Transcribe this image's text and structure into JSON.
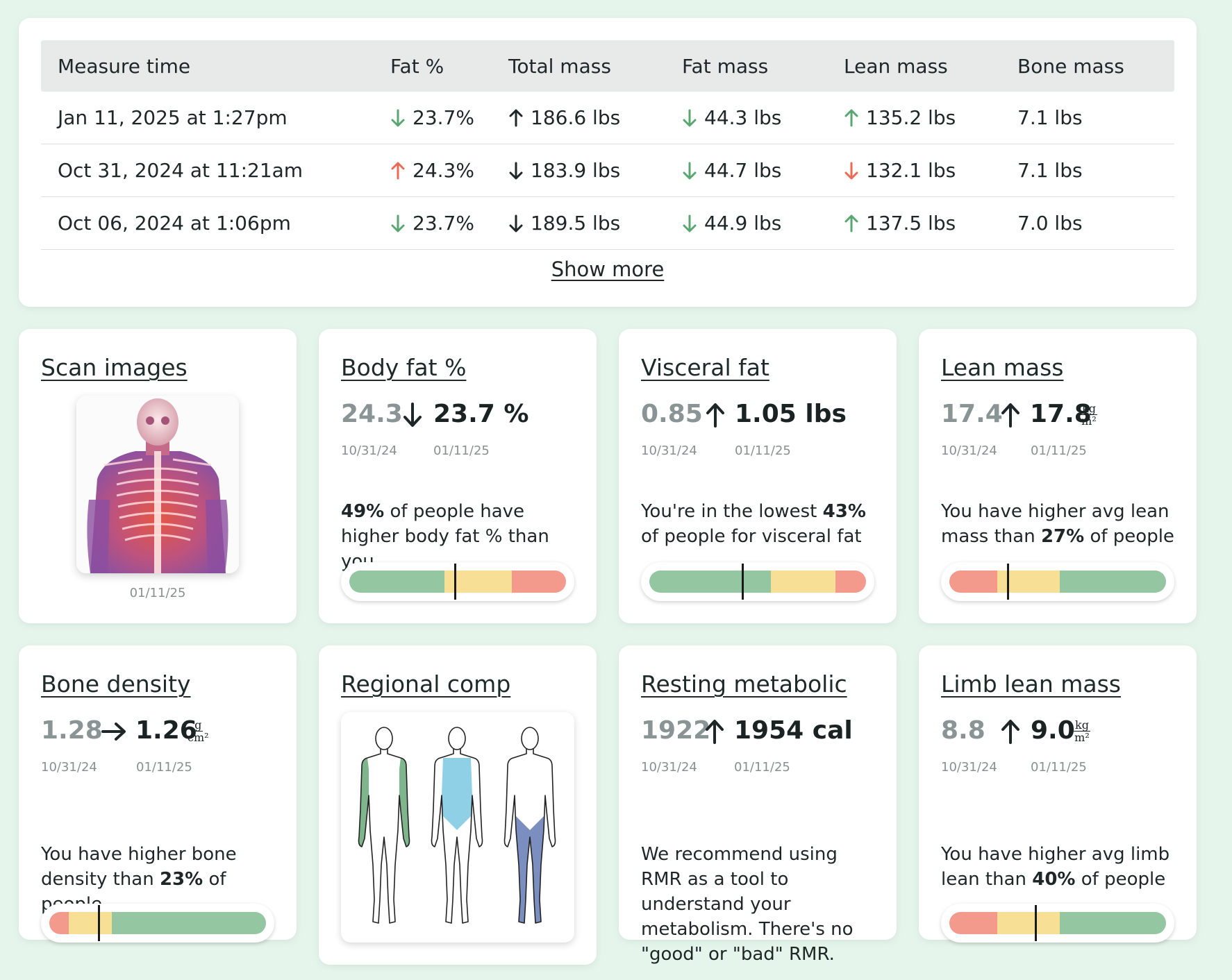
{
  "table": {
    "headers": [
      "Measure time",
      "Fat %",
      "Total mass",
      "Fat mass",
      "Lean mass",
      "Bone mass"
    ],
    "rows": [
      {
        "time": "Jan 11, 2025 at 1:27pm",
        "fat_pct": "23.7%",
        "fat_pct_dir": "down-green",
        "total": "186.6 lbs",
        "total_dir": "up-dark",
        "fat_mass": "44.3 lbs",
        "fat_mass_dir": "down-green",
        "lean": "135.2 lbs",
        "lean_dir": "up-green",
        "bone": "7.1 lbs"
      },
      {
        "time": "Oct 31, 2024 at 11:21am",
        "fat_pct": "24.3%",
        "fat_pct_dir": "up-red",
        "total": "183.9 lbs",
        "total_dir": "down-dark",
        "fat_mass": "44.7 lbs",
        "fat_mass_dir": "down-green",
        "lean": "132.1 lbs",
        "lean_dir": "down-red",
        "bone": "7.1 lbs"
      },
      {
        "time": "Oct 06, 2024 at 1:06pm",
        "fat_pct": "23.7%",
        "fat_pct_dir": "down-green",
        "total": "189.5 lbs",
        "total_dir": "down-dark",
        "fat_mass": "44.9 lbs",
        "fat_mass_dir": "down-green",
        "lean": "137.5 lbs",
        "lean_dir": "up-green",
        "bone": "7.0 lbs"
      }
    ],
    "show_more": "Show more"
  },
  "cards": {
    "scan": {
      "title": "Scan images",
      "date": "01/11/25"
    },
    "body_fat": {
      "title": "Body fat %",
      "prev": "24.3",
      "curr": "23.7 %",
      "prev_date": "10/31/24",
      "curr_date": "01/11/25",
      "desc_bold": "49%",
      "desc_rest": " of people have higher body fat % than you",
      "marker": 0.49
    },
    "visceral": {
      "title": "Visceral fat",
      "prev": "0.85",
      "curr": "1.05 lbs",
      "prev_date": "10/31/24",
      "curr_date": "01/11/25",
      "desc_pre": "You're in the lowest ",
      "desc_bold": "43%",
      "desc_post": " of people for visceral fat",
      "marker": 0.43
    },
    "lean": {
      "title": "Lean mass",
      "prev": "17.4",
      "curr": "17.8",
      "unit_num": "kg",
      "unit_den": "m²",
      "prev_date": "10/31/24",
      "curr_date": "01/11/25",
      "desc_pre": "You have higher avg lean mass than ",
      "desc_bold": "27%",
      "desc_post": " of people",
      "marker": 0.27
    },
    "bone": {
      "title": "Bone density",
      "prev": "1.28",
      "curr": "1.26",
      "unit_num": "g",
      "unit_den": "cm²",
      "prev_date": "10/31/24",
      "curr_date": "01/11/25",
      "desc_pre": "You have higher bone density than ",
      "desc_bold": "23%",
      "desc_post": " of people",
      "marker": 0.23
    },
    "regional": {
      "title": "Regional comp"
    },
    "rmr": {
      "title": "Resting metabolic",
      "prev": "1922",
      "curr": "1954 cal",
      "prev_date": "10/31/24",
      "curr_date": "01/11/25",
      "desc": "We recommend using RMR as a tool to understand your metabolism. There's no \"good\" or \"bad\" RMR."
    },
    "limb": {
      "title": "Limb lean mass",
      "prev": "8.8",
      "curr": "9.0",
      "unit_num": "kg",
      "unit_den": "m²",
      "prev_date": "10/31/24",
      "curr_date": "01/11/25",
      "desc_pre": "You have higher avg limb lean than ",
      "desc_bold": "40%",
      "desc_post": " of people",
      "marker": 0.4
    }
  },
  "colors": {
    "green": "#94c6a1",
    "yellow": "#f7df96",
    "red": "#f39a8c",
    "arrow_green": "#5aa671",
    "arrow_red": "#e96a55",
    "arrow_dark": "#1e2626"
  }
}
